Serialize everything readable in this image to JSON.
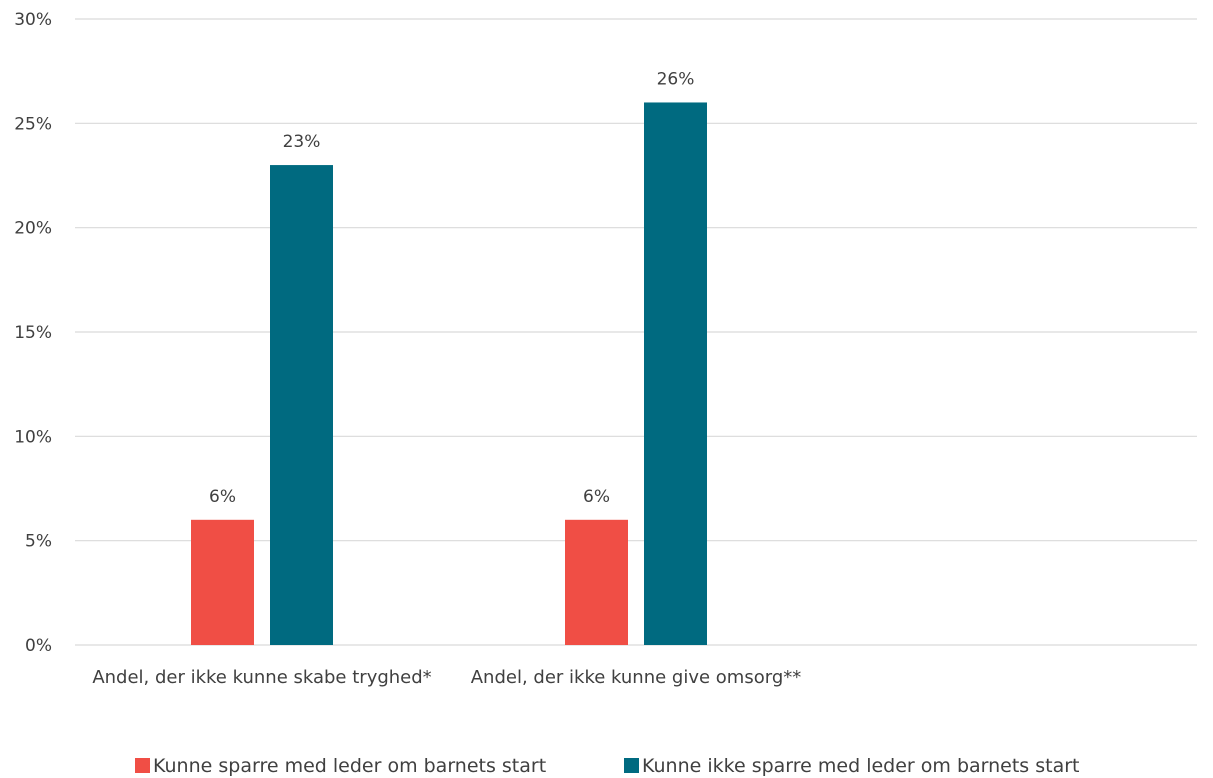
{
  "chart_data": {
    "type": "bar",
    "categories": [
      "Andel, der ikke kunne skabe tryghed*",
      "Andel, der ikke kunne give omsorg**",
      ""
    ],
    "series": [
      {
        "name": "Kunne sparre med leder om barnets start",
        "values": [
          6,
          6,
          null
        ],
        "labels": [
          "6%",
          "6%",
          ""
        ],
        "color": "#f04e45"
      },
      {
        "name": "Kunne ikke sparre med leder om barnets start",
        "values": [
          23,
          26,
          null
        ],
        "labels": [
          "23%",
          "26%",
          ""
        ],
        "color": "#006a80"
      }
    ],
    "y_ticks": [
      0,
      5,
      10,
      15,
      20,
      25,
      30
    ],
    "y_tick_labels": [
      "0%",
      "5%",
      "10%",
      "15%",
      "20%",
      "25%",
      "30%"
    ],
    "ylim": [
      0,
      30
    ],
    "grid": true,
    "legend": "bottom",
    "title": "",
    "xlabel": "",
    "ylabel": ""
  }
}
